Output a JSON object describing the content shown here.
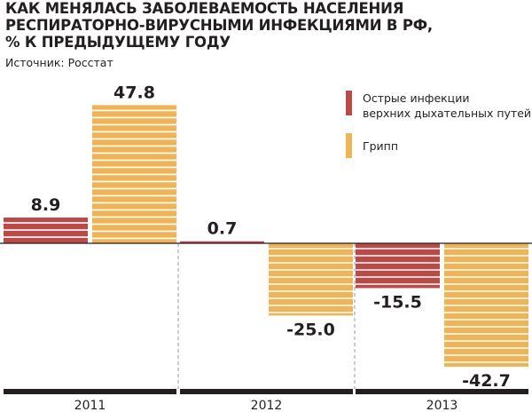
{
  "title": "КАК МЕНЯЛАСЬ ЗАБОЛЕВАЕМОСТЬ НАСЕЛЕНИЯ\nРЕСПИРАТОРНО-ВИРУСНЫМИ ИНФЕКЦИЯМИ В РФ,\n% К ПРЕДЫДУЩЕМУ ГОДУ",
  "source": "Источник: Росстат",
  "colors": {
    "series1": "#b94a48",
    "series2": "#f0b458",
    "text": "#231f20",
    "axis": "#9a9a9a"
  },
  "chart_data": {
    "type": "bar",
    "categories": [
      "2011",
      "2012",
      "2013"
    ],
    "series": [
      {
        "name": "Острые инфекции\nверхних дыхательных путей",
        "values": [
          8.9,
          0.7,
          -15.5
        ]
      },
      {
        "name": "Грипп",
        "values": [
          47.8,
          -25.0,
          -42.7
        ]
      }
    ],
    "value_labels": [
      [
        "8.9",
        "0.7",
        "-15.5"
      ],
      [
        "47.8",
        "-25.0",
        "-42.7"
      ]
    ],
    "ylim": [
      -42.7,
      47.8
    ],
    "legend_position": "top-right",
    "grid": false
  }
}
